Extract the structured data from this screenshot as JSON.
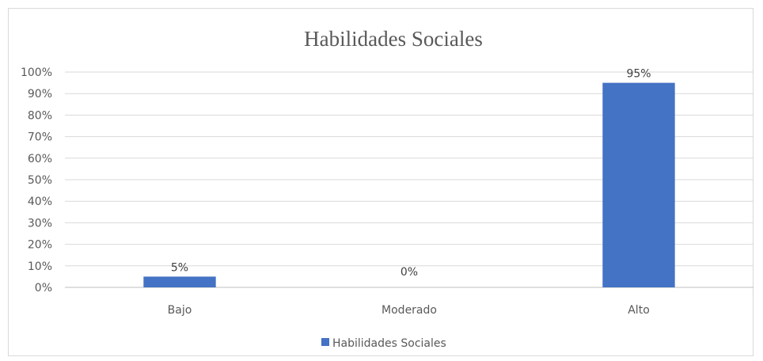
{
  "chart_data": {
    "type": "bar",
    "title": "Habilidades Sociales",
    "categories": [
      "Bajo",
      "Moderado",
      "Alto"
    ],
    "series": [
      {
        "name": "Habilidades Sociales",
        "values": [
          5,
          0,
          95
        ],
        "data_labels": [
          "5%",
          "0%",
          "95%"
        ],
        "color": "#4472C4"
      }
    ],
    "y_ticks": [
      "0%",
      "10%",
      "20%",
      "30%",
      "40%",
      "50%",
      "60%",
      "70%",
      "80%",
      "90%",
      "100%"
    ],
    "ylim": [
      0,
      100
    ],
    "y_unit": "%",
    "grid": true,
    "legend_position": "bottom",
    "colors": {
      "gridline": "#d9d9d9",
      "axis": "#bfbfbf"
    }
  }
}
